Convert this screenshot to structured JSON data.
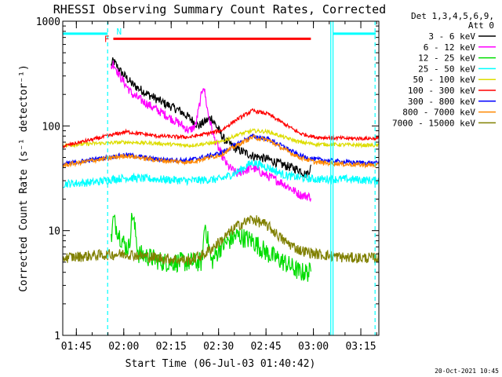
{
  "chart_data": {
    "type": "line",
    "title": "RHESSI Observing Summary Count Rates, Corrected",
    "xlabel": "Start Time (06-Jul-03 01:40:42)",
    "ylabel": "Corrected Count Rate (s⁻¹ detector⁻¹)",
    "x_units": "minutes after 01:40:42",
    "xlim": [
      0,
      100
    ],
    "ylim": [
      1,
      1000
    ],
    "yscale": "log",
    "x_ticks": [
      {
        "label": "01:45",
        "t": 4.3
      },
      {
        "label": "02:00",
        "t": 19.3
      },
      {
        "label": "02:15",
        "t": 34.3
      },
      {
        "label": "02:30",
        "t": 49.3
      },
      {
        "label": "02:45",
        "t": 64.3
      },
      {
        "label": "03:00",
        "t": 79.3
      },
      {
        "label": "03:15",
        "t": 94.3
      }
    ],
    "y_ticks": [
      {
        "label": "1",
        "v": 1
      },
      {
        "label": "10",
        "v": 10
      },
      {
        "label": "100",
        "v": 100
      },
      {
        "label": "1000",
        "v": 1000
      }
    ],
    "legend": {
      "header": [
        "Det 1,3,4,5,6,9,",
        "Att 0"
      ],
      "placement": "top-right outside"
    },
    "series": [
      {
        "name": "3 - 6 keV",
        "color": "#000000",
        "x": [
          15.3,
          16,
          18,
          22,
          27,
          32,
          37,
          40,
          43,
          45,
          47,
          49,
          51,
          55,
          60,
          65,
          70,
          75,
          77,
          78.5
        ],
        "y": [
          380,
          420,
          340,
          250,
          200,
          165,
          140,
          120,
          100,
          110,
          120,
          95,
          75,
          60,
          52,
          48,
          42,
          38,
          34,
          40
        ]
      },
      {
        "name": "6 - 12 keV",
        "color": "#ff00ff",
        "x": [
          15.3,
          16,
          18,
          22,
          27,
          32,
          37,
          40,
          42,
          44.5,
          46,
          48,
          50,
          52,
          55,
          60,
          65,
          70,
          75,
          78.5
        ],
        "y": [
          360,
          400,
          300,
          200,
          160,
          130,
          105,
          90,
          100,
          250,
          130,
          75,
          55,
          42,
          35,
          40,
          33,
          28,
          22,
          21
        ]
      },
      {
        "name": "12 - 25 keV",
        "color": "#00dd00",
        "x": [
          15.3,
          16,
          18,
          20,
          21,
          22,
          24,
          28,
          32,
          36,
          40,
          44,
          45,
          47,
          50,
          55,
          60,
          65,
          70,
          75,
          78.5
        ],
        "y": [
          8,
          13,
          9,
          7,
          7,
          15,
          6,
          5.5,
          5,
          5,
          5,
          5,
          12,
          5,
          7,
          9,
          8,
          6,
          5,
          4,
          4
        ]
      },
      {
        "name": "25 - 50 keV",
        "color": "#00ffff",
        "x": [
          0,
          10,
          16,
          20,
          30,
          40,
          50,
          55,
          60,
          65,
          70,
          75,
          80,
          90,
          100
        ],
        "y": [
          28,
          29,
          31,
          32,
          31,
          30,
          31,
          36,
          45,
          40,
          34,
          32,
          31,
          31,
          30
        ]
      },
      {
        "name": "50 - 100 keV",
        "color": "#dddd00",
        "x": [
          0,
          10,
          20,
          30,
          40,
          50,
          55,
          60,
          65,
          70,
          75,
          80,
          90,
          100
        ],
        "y": [
          65,
          68,
          70,
          68,
          65,
          70,
          82,
          90,
          88,
          78,
          70,
          67,
          66,
          65
        ]
      },
      {
        "name": "100 - 300 keV",
        "color": "#ff0000",
        "x": [
          0,
          10,
          20,
          30,
          40,
          50,
          55,
          60,
          65,
          70,
          75,
          80,
          90,
          100
        ],
        "y": [
          64,
          75,
          88,
          80,
          78,
          90,
          115,
          140,
          130,
          105,
          85,
          78,
          76,
          76
        ]
      },
      {
        "name": "300 - 800 keV",
        "color": "#0000ff",
        "x": [
          0,
          10,
          20,
          30,
          40,
          50,
          55,
          60,
          65,
          70,
          75,
          80,
          90,
          100
        ],
        "y": [
          43,
          48,
          53,
          48,
          47,
          55,
          67,
          80,
          75,
          63,
          52,
          48,
          45,
          44
        ]
      },
      {
        "name": "800 - 7000 keV",
        "color": "#ff8800",
        "x": [
          0,
          10,
          20,
          30,
          40,
          50,
          55,
          60,
          65,
          70,
          75,
          80,
          90,
          100
        ],
        "y": [
          42,
          47,
          52,
          47,
          45,
          53,
          65,
          78,
          73,
          60,
          50,
          45,
          43,
          42
        ]
      },
      {
        "name": "7000 - 15000 keV",
        "color": "#808000",
        "x": [
          0,
          10,
          20,
          30,
          40,
          45,
          50,
          55,
          60,
          65,
          70,
          75,
          80,
          90,
          100
        ],
        "y": [
          5.5,
          5.8,
          6,
          5.5,
          5.2,
          6,
          8,
          11,
          13,
          11,
          8,
          6.5,
          6,
          5.5,
          5.5
        ]
      }
    ],
    "annotations": {
      "attenuator_bar": {
        "label": "F",
        "color": "#ff0000",
        "start_t": 16,
        "end_t": 78.5,
        "level": 680
      },
      "night_bars": [
        {
          "color": "#00ffff",
          "start_t": 0,
          "end_t": 14.2,
          "level": 760
        },
        {
          "color": "#00ffff",
          "start_t": 85.5,
          "end_t": 99,
          "level": 760
        }
      ],
      "night_label": {
        "label": "N",
        "color": "#00ffff",
        "t": 16
      },
      "vertical_lines": [
        {
          "t": 14.2,
          "color": "#00ffff",
          "style": "dashed"
        },
        {
          "t": 84.8,
          "color": "#00ffff",
          "style": "solid"
        },
        {
          "t": 85.5,
          "color": "#00ffff",
          "style": "solid"
        },
        {
          "t": 98.8,
          "color": "#00ffff",
          "style": "dashed"
        }
      ]
    },
    "timestamp": "20-Oct-2021 10:45"
  }
}
